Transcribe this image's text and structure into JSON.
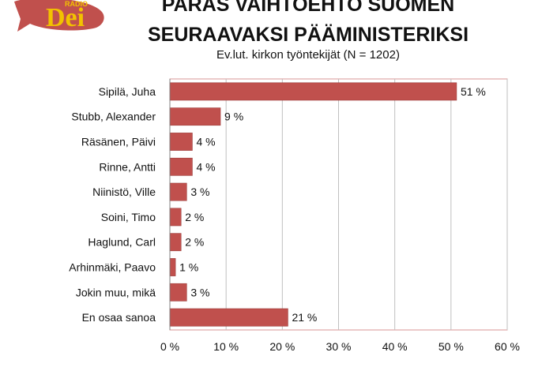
{
  "logo": {
    "text": "Dei",
    "small_text": "RADIO"
  },
  "header": {
    "title_line1": "PARAS VAIHTOEHTO SUOMEN",
    "title_line2": "SEURAAVAKSI PÄÄMINISTERIKSI",
    "subtitle": "Ev.lut. kirkon työntekijät (N = 1202)"
  },
  "colors": {
    "bar": "#c0504d",
    "bar_stroke": "#943634",
    "grid": "#bfbfbf",
    "frame": "#d99694"
  },
  "chart_data": {
    "type": "bar",
    "orientation": "horizontal",
    "categories": [
      "Sipilä, Juha",
      "Stubb, Alexander",
      "Räsänen, Päivi",
      "Rinne, Antti",
      "Niinistö, Ville",
      "Soini, Timo",
      "Haglund, Carl",
      "Arhinmäki, Paavo",
      "Jokin muu, mikä",
      "En osaa sanoa"
    ],
    "values": [
      51,
      9,
      4,
      4,
      3,
      2,
      2,
      1,
      3,
      21
    ],
    "value_labels": [
      "51 %",
      "9 %",
      "4 %",
      "4 %",
      "3 %",
      "2 %",
      "2 %",
      "1 %",
      "3 %",
      "21 %"
    ],
    "xlim": [
      0,
      60
    ],
    "xticks": [
      0,
      10,
      20,
      30,
      40,
      50,
      60
    ],
    "xtick_labels": [
      "0 %",
      "10 %",
      "20 %",
      "30 %",
      "40 %",
      "50 %",
      "60 %"
    ],
    "grid": true
  }
}
